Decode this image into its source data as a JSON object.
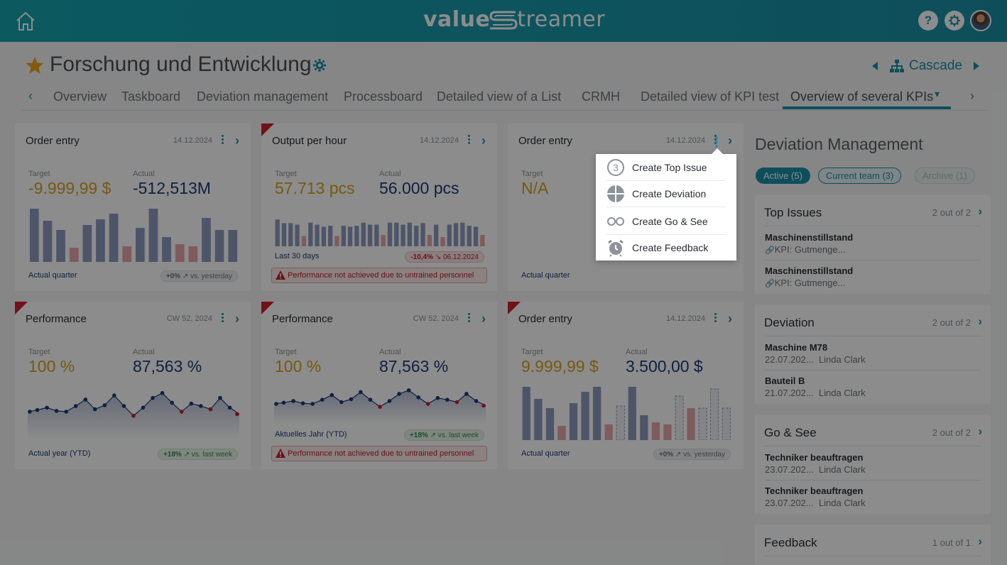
{
  "app": {
    "logo_value": "value",
    "logo_streamer": "treamer",
    "help_label": "?"
  },
  "header": {
    "title": "Forschung und Entwicklung",
    "cascade_label": "Cascade"
  },
  "tabs": [
    {
      "label": "Overview"
    },
    {
      "label": "Taskboard"
    },
    {
      "label": "Deviation management"
    },
    {
      "label": "Processboard"
    },
    {
      "label": "Detailed view of a List"
    },
    {
      "label": "CRMH"
    },
    {
      "label": "Detailed view of KPI test"
    },
    {
      "label": "Overview of several KPIs",
      "active": true
    }
  ],
  "cards": [
    {
      "title": "Order entry",
      "date": "14.12.2024",
      "flag": false,
      "target_label": "Target",
      "target": "-9.999,99 $",
      "actual_label": "Actual",
      "actual": "-512,513M",
      "period": "Actual quarter",
      "trend": "+0%",
      "trend_vs": "vs. yesterday",
      "trend_tone": "gray",
      "chart": {
        "type": "bar",
        "values": [
          75,
          58,
          45,
          20,
          52,
          60,
          68,
          22,
          48,
          75,
          35,
          25,
          22,
          62,
          45,
          45
        ],
        "status": [
          "ok",
          "ok",
          "ok",
          "bad",
          "ok",
          "ok",
          "ok",
          "bad",
          "ok",
          "ok",
          "ok",
          "bad",
          "bad",
          "ok",
          "ok",
          "ok"
        ]
      }
    },
    {
      "title": "Output per hour",
      "date": "14.12.2024",
      "flag": true,
      "target_label": "Target",
      "target": "57.713 pcs",
      "actual_label": "Actual",
      "actual": "56.000 pcs",
      "period": "Last 30 days",
      "trend": "-10,4%",
      "trend_vs": "06.12.2024",
      "trend_tone": "red",
      "warning": "Performance not achieved due to untrained personnel",
      "chart": {
        "type": "bar",
        "values": [
          52,
          45,
          45,
          42,
          20,
          46,
          42,
          38,
          40,
          20,
          40,
          38,
          40,
          46,
          42,
          42,
          22,
          46,
          46,
          42,
          46,
          40,
          45,
          22,
          42,
          18,
          42,
          45,
          46,
          40,
          38,
          22
        ],
        "status": [
          "ok",
          "ok",
          "ok",
          "ok",
          "bad",
          "ok",
          "ok",
          "ok",
          "ok",
          "bad",
          "ok",
          "ok",
          "ok",
          "ok",
          "ok",
          "ok",
          "bad",
          "ok",
          "ok",
          "ok",
          "ok",
          "ok",
          "ok",
          "bad",
          "ok",
          "bad",
          "ok",
          "ok",
          "ok",
          "ok",
          "ok",
          "bad"
        ]
      }
    },
    {
      "title": "Order entry",
      "date": "14.12.2024",
      "flag": false,
      "target_label": "Target",
      "target": "N/A",
      "period": "Actual quarter"
    },
    {
      "title": "Performance",
      "date": "CW 52, 2024",
      "flag": true,
      "target_label": "Target",
      "target": "100 %",
      "actual_label": "Actual",
      "actual": "87,563 %",
      "period": "Actual year (YTD)",
      "trend": "+18%",
      "trend_vs": "vs. last week",
      "trend_tone": "green",
      "chart": {
        "type": "line",
        "values": [
          55,
          57,
          60,
          56,
          55,
          62,
          70,
          58,
          63,
          75,
          62,
          50,
          60,
          72,
          78,
          66,
          55,
          65,
          62,
          58,
          72,
          60,
          52
        ],
        "status": [
          "ok",
          "ok",
          "ok",
          "ok",
          "ok",
          "ok",
          "ok",
          "ok",
          "ok",
          "ok",
          "ok",
          "bad",
          "ok",
          "ok",
          "ok",
          "ok",
          "bad",
          "ok",
          "ok",
          "bad",
          "ok",
          "ok",
          "bad"
        ]
      }
    },
    {
      "title": "Performance",
      "date": "CW 52, 2024",
      "flag": true,
      "target_label": "Target",
      "target": "100 %",
      "actual_label": "Actual",
      "actual": "87,563 %",
      "period": "Aktuelles Jahr (YTD)",
      "trend": "+18%",
      "trend_vs": "vs. last week",
      "trend_tone": "green",
      "warning": "Performance not achieved due to untrained personnel",
      "chart": {
        "type": "line",
        "values": [
          55,
          57,
          60,
          56,
          55,
          62,
          70,
          58,
          63,
          75,
          62,
          50,
          60,
          72,
          78,
          66,
          55,
          65,
          62,
          58,
          72,
          60,
          52
        ],
        "status": [
          "ok",
          "ok",
          "ok",
          "ok",
          "ok",
          "ok",
          "ok",
          "ok",
          "ok",
          "ok",
          "ok",
          "bad",
          "ok",
          "ok",
          "ok",
          "ok",
          "bad",
          "ok",
          "ok",
          "bad",
          "ok",
          "ok",
          "bad"
        ]
      }
    },
    {
      "title": "Order entry",
      "date": "14.12.2024",
      "flag": true,
      "target_label": "Target",
      "target": "9.999,99 $",
      "actual_label": "Actual",
      "actual": "3.500,00 $",
      "period": "Actual quarter",
      "trend": "+0%",
      "trend_vs": "vs. yesterday",
      "trend_tone": "gray",
      "chart": {
        "type": "bar",
        "values": [
          75,
          58,
          45,
          20,
          52,
          68,
          75,
          22,
          48,
          75,
          35,
          25,
          22,
          62,
          45,
          45,
          72,
          45
        ],
        "status": [
          "ok",
          "ok",
          "ok",
          "bad",
          "ok",
          "ok",
          "ok",
          "bad",
          "plan",
          "ok",
          "ok",
          "bad",
          "bad",
          "plan",
          "bad",
          "plan",
          "plan",
          "plan"
        ]
      }
    }
  ],
  "context_menu": {
    "items": [
      {
        "label": "Create Top Issue",
        "icon": "top-issue-3-icon"
      },
      {
        "label": "Create Deviation",
        "icon": "deviation-icon"
      },
      {
        "label": "Create Go & See",
        "icon": "glasses-icon"
      },
      {
        "label": "Create Feedback",
        "icon": "alarm-clock-icon"
      }
    ],
    "badge": "3"
  },
  "deviation_management": {
    "title": "Deviation Management",
    "filters": [
      {
        "label": "Active (5)",
        "state": "active"
      },
      {
        "label": "Current team (3)",
        "state": "normal"
      },
      {
        "label": "Archive (1)",
        "state": "disabled"
      }
    ],
    "sections": [
      {
        "title": "Top Issues",
        "count": "2 out of 2",
        "items": [
          {
            "title": "Maschinenstillstand",
            "sub": "KPI: Gutmenge..."
          },
          {
            "title": "Maschinenstillstand",
            "sub": "KPI: Gutmenge..."
          }
        ]
      },
      {
        "title": "Deviation",
        "count": "2 out of 2",
        "items": [
          {
            "title": "Maschine M78",
            "date": "22.07.202...",
            "person": "Linda Clark"
          },
          {
            "title": "Bauteil B",
            "date": "21.07.202...",
            "person": "Linda Clark"
          }
        ]
      },
      {
        "title": "Go & See",
        "count": "2 out of 2",
        "items": [
          {
            "title": "Techniker beauftragen",
            "date": "23.07.202...",
            "person": "Linda Clark"
          },
          {
            "title": "Techniker beauftragen",
            "date": "23.07.202...",
            "person": "Linda Clark"
          }
        ]
      },
      {
        "title": "Feedback",
        "count": "1 out of 1",
        "items": []
      }
    ]
  },
  "colors": {
    "accent": "#1a8fa6",
    "target": "#d8a21e",
    "actual": "#1d3b78",
    "bar_ok": "#8e9bbf",
    "bar_bad": "#e8a6aa",
    "flag": "#d0202a"
  }
}
